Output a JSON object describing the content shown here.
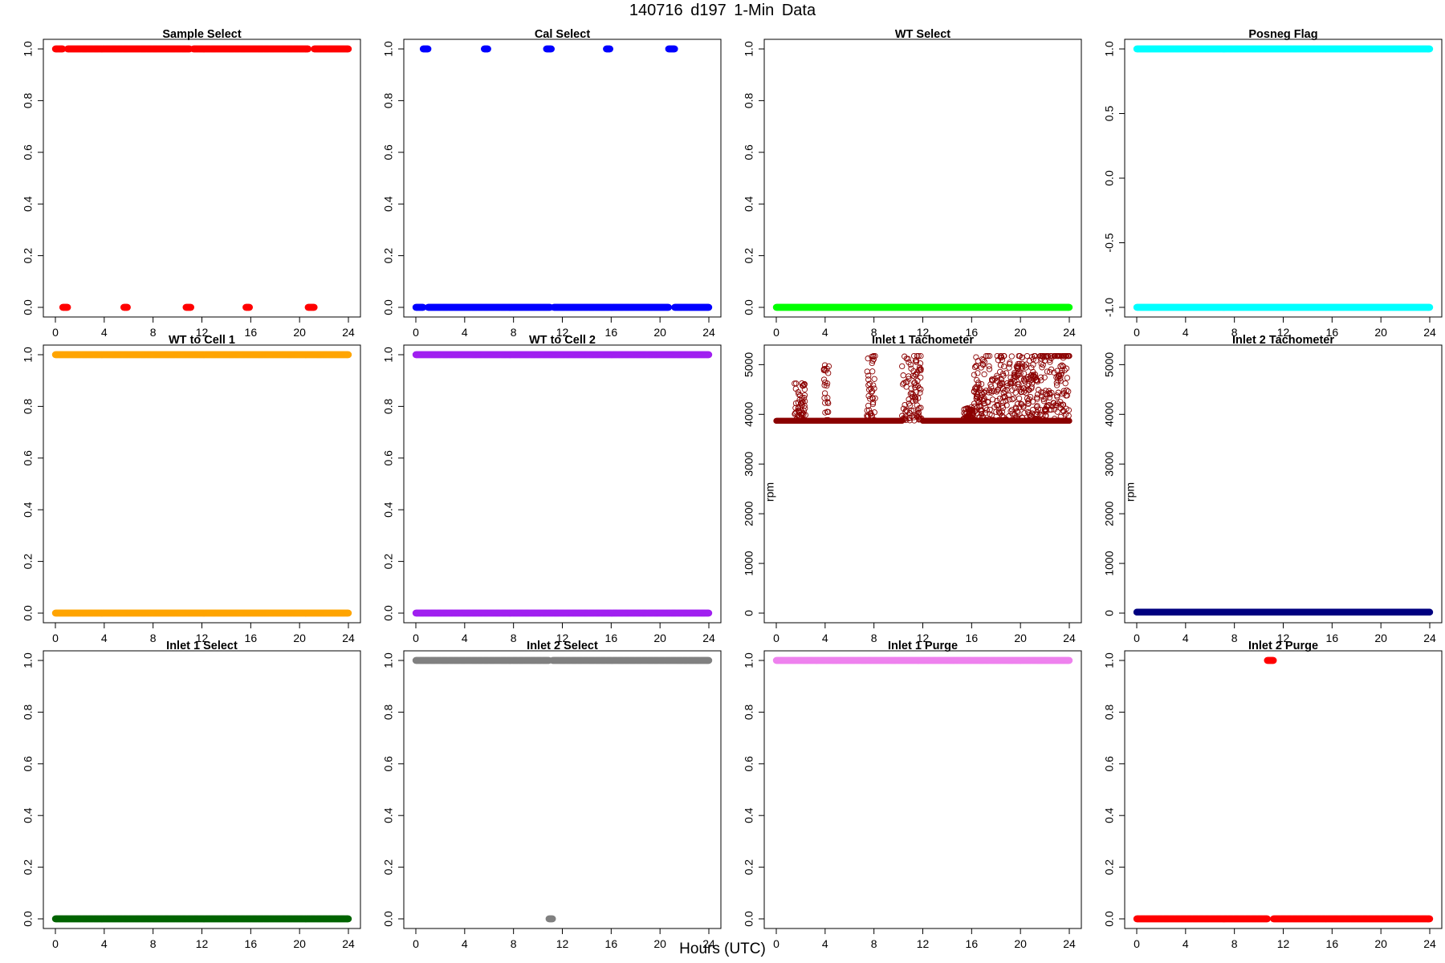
{
  "page": {
    "title": "140716   d197   1-Min Data",
    "xlabel": "Hours (UTC)"
  },
  "x_ticks": [
    "0",
    "4",
    "8",
    "12",
    "16",
    "20",
    "24"
  ],
  "chart_data": [
    {
      "type": "scatter",
      "title": "Sample Select",
      "ylabel": "",
      "xlim": [
        0,
        24
      ],
      "ylim": [
        0,
        1
      ],
      "yticks": [
        "0.0",
        "0.2",
        "0.4",
        "0.6",
        "0.8",
        "1.0"
      ],
      "color": "#ff0000",
      "marker": "filled",
      "series": [
        {
          "runs": [
            [
              0,
              0.6,
              1
            ],
            [
              1.0,
              11.0,
              1
            ],
            [
              11.3,
              20.7,
              1
            ],
            [
              21.2,
              24,
              1
            ],
            [
              0.6,
              1.0,
              0
            ],
            [
              5.6,
              5.9,
              0
            ],
            [
              10.7,
              11.1,
              0
            ],
            [
              15.6,
              15.9,
              0
            ],
            [
              20.7,
              21.2,
              0
            ]
          ]
        }
      ]
    },
    {
      "type": "scatter",
      "title": "Cal Select",
      "ylabel": "",
      "xlim": [
        0,
        24
      ],
      "ylim": [
        0,
        1
      ],
      "yticks": [
        "0.0",
        "0.2",
        "0.4",
        "0.6",
        "0.8",
        "1.0"
      ],
      "color": "#0000ff",
      "marker": "filled",
      "series": [
        {
          "runs": [
            [
              0.6,
              1.0,
              1
            ],
            [
              5.6,
              5.9,
              1
            ],
            [
              10.7,
              11.1,
              1
            ],
            [
              15.6,
              15.9,
              1
            ],
            [
              20.7,
              21.2,
              1
            ],
            [
              0,
              0.6,
              0
            ],
            [
              1.0,
              11.0,
              0
            ],
            [
              11.3,
              20.7,
              0
            ],
            [
              21.2,
              24,
              0
            ]
          ]
        }
      ]
    },
    {
      "type": "scatter",
      "title": "WT Select",
      "ylabel": "",
      "xlim": [
        0,
        24
      ],
      "ylim": [
        0,
        1
      ],
      "yticks": [
        "0.0",
        "0.2",
        "0.4",
        "0.6",
        "0.8",
        "1.0"
      ],
      "color": "#00ff00",
      "marker": "filled",
      "series": [
        {
          "runs": [
            [
              0,
              24,
              0
            ]
          ]
        }
      ]
    },
    {
      "type": "scatter",
      "title": "Posneg Flag",
      "ylabel": "",
      "xlim": [
        0,
        24
      ],
      "ylim": [
        -1,
        1
      ],
      "yticks": [
        "-1.0",
        "-0.5",
        "0.0",
        "0.5",
        "1.0"
      ],
      "color": "#00ffff",
      "marker": "filled",
      "series": [
        {
          "runs": [
            [
              0,
              24,
              1
            ],
            [
              0,
              24,
              -1
            ]
          ]
        }
      ]
    },
    {
      "type": "scatter",
      "title": "WT to Cell 1",
      "ylabel": "",
      "xlim": [
        0,
        24
      ],
      "ylim": [
        0,
        1
      ],
      "yticks": [
        "0.0",
        "0.2",
        "0.4",
        "0.6",
        "0.8",
        "1.0"
      ],
      "color": "#ffa500",
      "marker": "filled",
      "series": [
        {
          "runs": [
            [
              0,
              24,
              1
            ],
            [
              0,
              24,
              0
            ]
          ]
        }
      ]
    },
    {
      "type": "scatter",
      "title": "WT to Cell 2",
      "ylabel": "",
      "xlim": [
        0,
        24
      ],
      "ylim": [
        0,
        1
      ],
      "yticks": [
        "0.0",
        "0.2",
        "0.4",
        "0.6",
        "0.8",
        "1.0"
      ],
      "color": "#a020f0",
      "marker": "filled",
      "series": [
        {
          "runs": [
            [
              0,
              24,
              1
            ],
            [
              0,
              24,
              0
            ]
          ]
        }
      ]
    },
    {
      "type": "scatter",
      "title": "Inlet 1 Tachometer",
      "ylabel": "rpm",
      "xlim": [
        0,
        24
      ],
      "ylim": [
        0,
        5200
      ],
      "yticks": [
        "0",
        "1000",
        "2000",
        "3000",
        "4000",
        "5000"
      ],
      "color": "#8b0000",
      "marker": "open",
      "series": [
        {
          "runs": [
            [
              0,
              10.3,
              3870
            ],
            [
              12.0,
              24,
              3870
            ]
          ],
          "spikes": [
            [
              1.5,
              2.4,
              4250
            ],
            [
              3.9,
              4.3,
              4400
            ],
            [
              7.4,
              8.1,
              4500
            ],
            [
              10.3,
              11.9,
              4500
            ],
            [
              15.3,
              16.2,
              4000
            ],
            [
              16.2,
              21.5,
              4500
            ],
            [
              21.6,
              24,
              4650
            ]
          ]
        }
      ]
    },
    {
      "type": "scatter",
      "title": "Inlet 2 Tachometer",
      "ylabel": "rpm",
      "xlim": [
        0,
        24
      ],
      "ylim": [
        0,
        5200
      ],
      "yticks": [
        "0",
        "1000",
        "2000",
        "3000",
        "4000",
        "5000"
      ],
      "color": "#000080",
      "marker": "filled",
      "series": [
        {
          "runs": [
            [
              0,
              24,
              20
            ]
          ]
        }
      ]
    },
    {
      "type": "scatter",
      "title": "Inlet 1 Select",
      "ylabel": "",
      "xlim": [
        0,
        24
      ],
      "ylim": [
        0,
        1
      ],
      "yticks": [
        "0.0",
        "0.2",
        "0.4",
        "0.6",
        "0.8",
        "1.0"
      ],
      "color": "#006400",
      "marker": "filled",
      "series": [
        {
          "runs": [
            [
              0,
              24,
              0
            ]
          ]
        }
      ]
    },
    {
      "type": "scatter",
      "title": "Inlet 2 Select",
      "ylabel": "",
      "xlim": [
        0,
        24
      ],
      "ylim": [
        0,
        1
      ],
      "yticks": [
        "0.0",
        "0.2",
        "0.4",
        "0.6",
        "0.8",
        "1.0"
      ],
      "color": "#808080",
      "marker": "filled",
      "series": [
        {
          "runs": [
            [
              0,
              10.9,
              1
            ],
            [
              11.2,
              24,
              1
            ],
            [
              10.9,
              11.2,
              0
            ]
          ]
        }
      ]
    },
    {
      "type": "scatter",
      "title": "Inlet 1 Purge",
      "ylabel": "",
      "xlim": [
        0,
        24
      ],
      "ylim": [
        0,
        1
      ],
      "yticks": [
        "0.0",
        "0.2",
        "0.4",
        "0.6",
        "0.8",
        "1.0"
      ],
      "color": "#ee82ee",
      "marker": "filled",
      "series": [
        {
          "runs": [
            [
              0,
              24,
              1
            ]
          ]
        }
      ]
    },
    {
      "type": "scatter",
      "title": "Inlet 2 Purge",
      "ylabel": "",
      "xlim": [
        0,
        24
      ],
      "ylim": [
        0,
        1
      ],
      "yticks": [
        "0.0",
        "0.2",
        "0.4",
        "0.6",
        "0.8",
        "1.0"
      ],
      "color": "#ff0000",
      "marker": "filled",
      "series": [
        {
          "runs": [
            [
              10.7,
              11.2,
              1
            ],
            [
              0,
              10.7,
              0
            ],
            [
              11.2,
              24,
              0
            ]
          ]
        }
      ]
    }
  ]
}
